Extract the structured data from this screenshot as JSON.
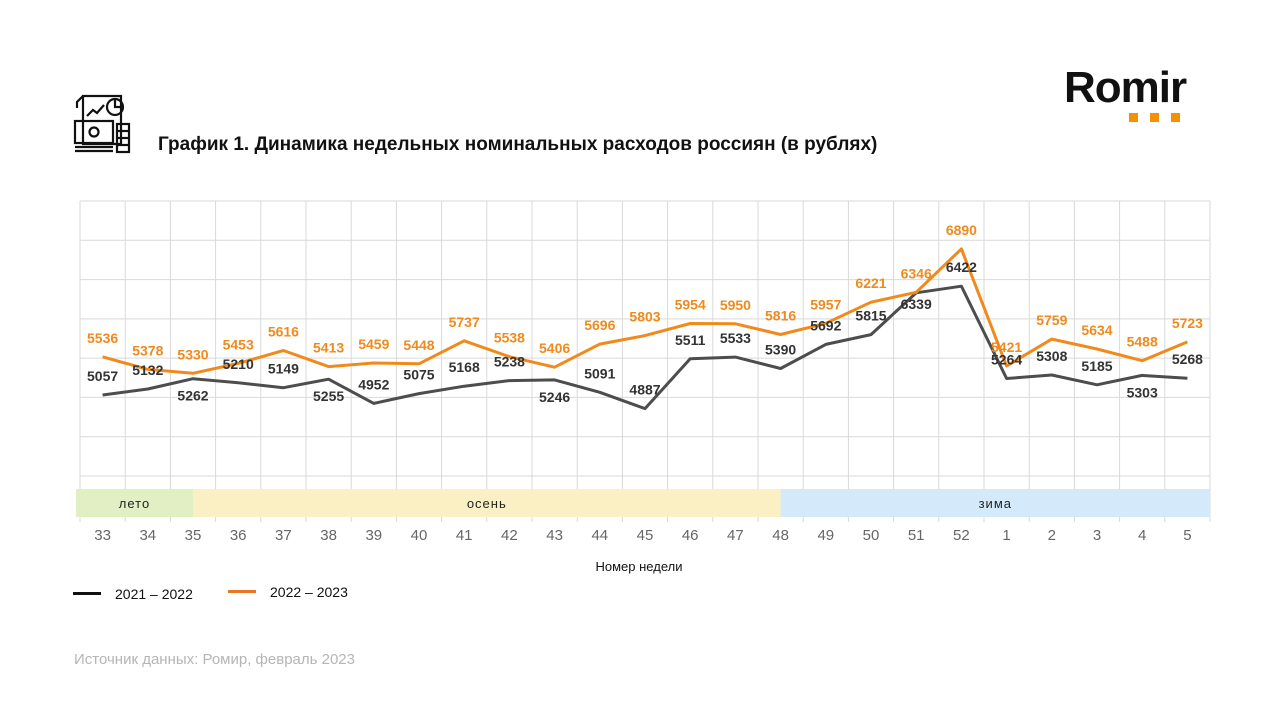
{
  "header": {
    "title": "График 1. Динамика недельных номинальных расходов россиян (в рублях)",
    "logo_text": "Romir",
    "icon": "finance-report-icon"
  },
  "colors": {
    "series_2021_2022": "#4d4d4d",
    "series_2022_2023": "#f08a1c",
    "label_2021_2022": "#333333",
    "label_2022_2023": "#f08a1c",
    "grid": "#d9d9d9",
    "season_summer": "#e2efc4",
    "season_autumn": "#fbf0c4",
    "season_winter": "#d4e9fa",
    "logo_dots": "#f39200"
  },
  "chart_data": {
    "type": "line",
    "title": "График 1. Динамика недельных номинальных расходов россиян (в рублях)",
    "xlabel": "Номер недели",
    "ylabel": "",
    "categories": [
      "33",
      "34",
      "35",
      "36",
      "37",
      "38",
      "39",
      "40",
      "41",
      "42",
      "43",
      "44",
      "45",
      "46",
      "47",
      "48",
      "49",
      "50",
      "51",
      "52",
      "1",
      "2",
      "3",
      "4",
      "5"
    ],
    "series": [
      {
        "name": "2021 – 2022",
        "values": [
          5057,
          5132,
          5262,
          5210,
          5149,
          5255,
          4952,
          5075,
          5168,
          5238,
          5246,
          5091,
          4887,
          5511,
          5533,
          5390,
          5692,
          5815,
          6339,
          6422,
          5264,
          5308,
          5185,
          5303,
          5268
        ]
      },
      {
        "name": "2022 – 2023",
        "values": [
          5536,
          5378,
          5330,
          5453,
          5616,
          5413,
          5459,
          5448,
          5737,
          5538,
          5406,
          5696,
          5803,
          5954,
          5950,
          5816,
          5957,
          6221,
          6346,
          6890,
          5421,
          5759,
          5634,
          5488,
          5723
        ]
      }
    ],
    "seasons": [
      {
        "label": "лето",
        "from": "33",
        "to": "35"
      },
      {
        "label": "осень",
        "from": "35",
        "to": "48"
      },
      {
        "label": "зима",
        "from": "48",
        "to": "5"
      }
    ],
    "ylim": [
      4400,
      6950
    ],
    "grid": true,
    "legend_position": "bottom-left"
  },
  "legend": {
    "items": [
      {
        "label": "2021 – 2022"
      },
      {
        "label": "2022 – 2023"
      }
    ]
  },
  "footer": {
    "source": "Источник данных: Ромир, февраль 2023"
  }
}
